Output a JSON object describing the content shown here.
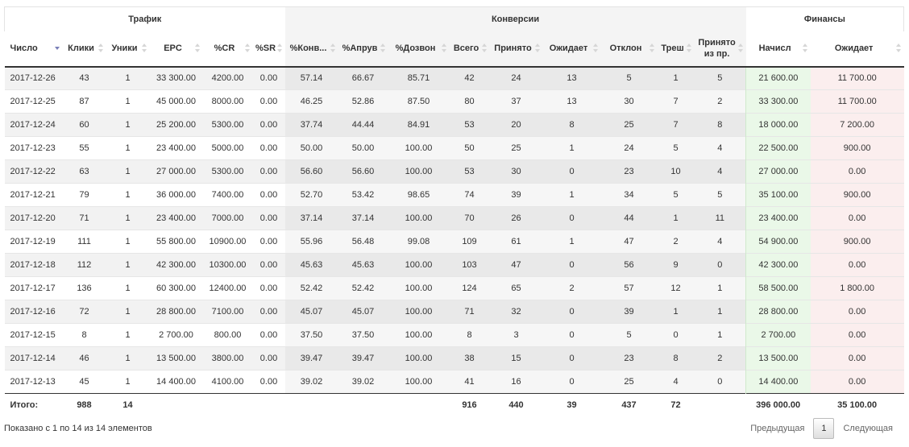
{
  "groups": {
    "traffic": "Трафик",
    "conversions": "Конверсии",
    "finance": "Финансы"
  },
  "columns": [
    {
      "label": "Число",
      "sort": "desc"
    },
    {
      "label": "Клики",
      "sort": "both"
    },
    {
      "label": "Уники",
      "sort": "both"
    },
    {
      "label": "EPC",
      "sort": "both"
    },
    {
      "label": "%CR",
      "sort": "both"
    },
    {
      "label": "%SR",
      "sort": "both"
    },
    {
      "label": "%Конв...",
      "sort": "both"
    },
    {
      "label": "%Апрув",
      "sort": "both"
    },
    {
      "label": "%Дозвон",
      "sort": "both"
    },
    {
      "label": "Всего",
      "sort": "both"
    },
    {
      "label": "Принято",
      "sort": "both"
    },
    {
      "label": "Ожидает",
      "sort": "both"
    },
    {
      "label": "Отклон",
      "sort": "both"
    },
    {
      "label": "Треш",
      "sort": "both"
    },
    {
      "label": "Принято\nиз пр.",
      "sort": "both"
    },
    {
      "label": "Начисл",
      "sort": "both"
    },
    {
      "label": "Ожидает",
      "sort": "both"
    }
  ],
  "rows": [
    [
      "2017-12-26",
      "43",
      "1",
      "33 300.00",
      "4200.00",
      "0.00",
      "57.14",
      "66.67",
      "85.71",
      "42",
      "24",
      "13",
      "5",
      "1",
      "5",
      "21 600.00",
      "11 700.00"
    ],
    [
      "2017-12-25",
      "87",
      "1",
      "45 000.00",
      "8000.00",
      "0.00",
      "46.25",
      "52.86",
      "87.50",
      "80",
      "37",
      "13",
      "30",
      "7",
      "2",
      "33 300.00",
      "11 700.00"
    ],
    [
      "2017-12-24",
      "60",
      "1",
      "25 200.00",
      "5300.00",
      "0.00",
      "37.74",
      "44.44",
      "84.91",
      "53",
      "20",
      "8",
      "25",
      "7",
      "8",
      "18 000.00",
      "7 200.00"
    ],
    [
      "2017-12-23",
      "55",
      "1",
      "23 400.00",
      "5000.00",
      "0.00",
      "50.00",
      "50.00",
      "100.00",
      "50",
      "25",
      "1",
      "24",
      "5",
      "4",
      "22 500.00",
      "900.00"
    ],
    [
      "2017-12-22",
      "63",
      "1",
      "27 000.00",
      "5300.00",
      "0.00",
      "56.60",
      "56.60",
      "100.00",
      "53",
      "30",
      "0",
      "23",
      "10",
      "4",
      "27 000.00",
      "0.00"
    ],
    [
      "2017-12-21",
      "79",
      "1",
      "36 000.00",
      "7400.00",
      "0.00",
      "52.70",
      "53.42",
      "98.65",
      "74",
      "39",
      "1",
      "34",
      "5",
      "5",
      "35 100.00",
      "900.00"
    ],
    [
      "2017-12-20",
      "71",
      "1",
      "23 400.00",
      "7000.00",
      "0.00",
      "37.14",
      "37.14",
      "100.00",
      "70",
      "26",
      "0",
      "44",
      "1",
      "11",
      "23 400.00",
      "0.00"
    ],
    [
      "2017-12-19",
      "111",
      "1",
      "55 800.00",
      "10900.00",
      "0.00",
      "55.96",
      "56.48",
      "99.08",
      "109",
      "61",
      "1",
      "47",
      "2",
      "4",
      "54 900.00",
      "900.00"
    ],
    [
      "2017-12-18",
      "112",
      "1",
      "42 300.00",
      "10300.00",
      "0.00",
      "45.63",
      "45.63",
      "100.00",
      "103",
      "47",
      "0",
      "56",
      "9",
      "0",
      "42 300.00",
      "0.00"
    ],
    [
      "2017-12-17",
      "136",
      "1",
      "60 300.00",
      "12400.00",
      "0.00",
      "52.42",
      "52.42",
      "100.00",
      "124",
      "65",
      "2",
      "57",
      "12",
      "1",
      "58 500.00",
      "1 800.00"
    ],
    [
      "2017-12-16",
      "72",
      "1",
      "28 800.00",
      "7100.00",
      "0.00",
      "45.07",
      "45.07",
      "100.00",
      "71",
      "32",
      "0",
      "39",
      "1",
      "1",
      "28 800.00",
      "0.00"
    ],
    [
      "2017-12-15",
      "8",
      "1",
      "2 700.00",
      "800.00",
      "0.00",
      "37.50",
      "37.50",
      "100.00",
      "8",
      "3",
      "0",
      "5",
      "0",
      "1",
      "2 700.00",
      "0.00"
    ],
    [
      "2017-12-14",
      "46",
      "1",
      "13 500.00",
      "3800.00",
      "0.00",
      "39.47",
      "39.47",
      "100.00",
      "38",
      "15",
      "0",
      "23",
      "8",
      "2",
      "13 500.00",
      "0.00"
    ],
    [
      "2017-12-13",
      "45",
      "1",
      "14 400.00",
      "4100.00",
      "0.00",
      "39.02",
      "39.02",
      "100.00",
      "41",
      "16",
      "0",
      "25",
      "4",
      "0",
      "14 400.00",
      "0.00"
    ]
  ],
  "totals": [
    "Итого:",
    "988",
    "14",
    "",
    "",
    "",
    "",
    "",
    "",
    "916",
    "440",
    "39",
    "437",
    "72",
    "",
    "396 000.00",
    "35 100.00"
  ],
  "footer": {
    "info": "Показано с 1 по 14 из 14 элементов",
    "prev": "Предыдущая",
    "page": "1",
    "next": "Следующая"
  },
  "colors": {
    "finance_accrued_bg": "#eaf8e8",
    "finance_pending_bg": "#fbeeee",
    "sort_active": "#7a7fb8"
  }
}
